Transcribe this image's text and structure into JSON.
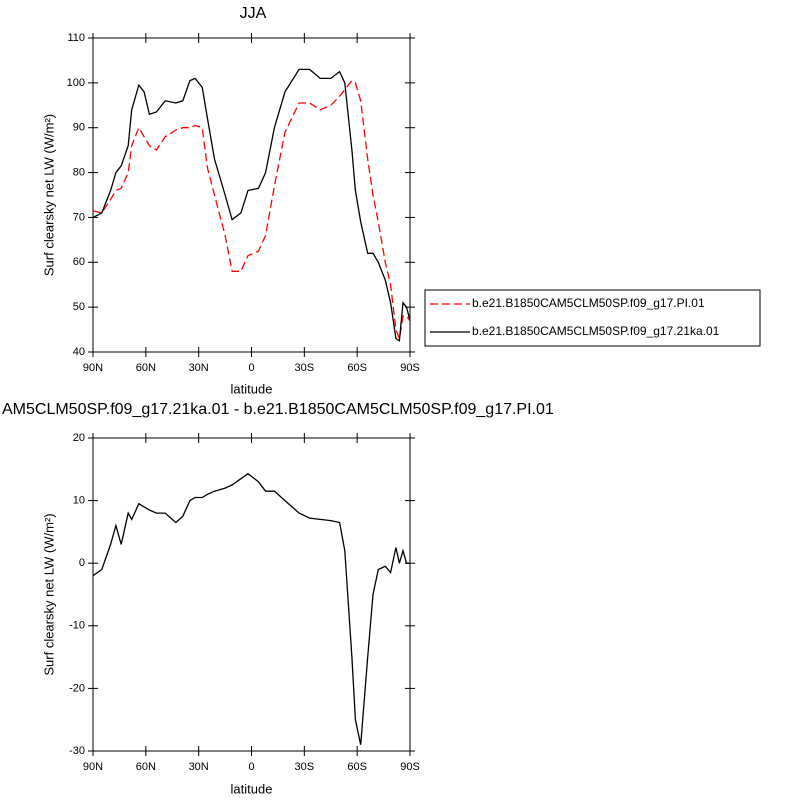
{
  "chart_data": [
    {
      "type": "line",
      "title": "JJA",
      "xlabel": "latitude",
      "ylabel": "Surf clearsky net LW (W/m²)",
      "x": [
        90,
        85,
        80,
        77,
        74,
        70,
        68,
        64,
        61,
        58,
        54,
        49,
        43,
        39,
        35,
        32,
        28,
        25,
        21,
        15,
        11,
        6,
        2,
        -4,
        -8,
        -13,
        -19,
        -27,
        -33,
        -39,
        -45,
        -50,
        -53,
        -57,
        -59,
        -62,
        -66,
        -69,
        -72,
        -76,
        -79,
        -82,
        -84,
        -86,
        -88,
        -90
      ],
      "series": [
        {
          "name": "b.e21.B1850CAM5CLM50SP.f09_g17.PI.01",
          "color": "#ff0000",
          "dash": "dashed",
          "values": [
            71.5,
            71,
            74,
            76,
            76.5,
            80,
            86,
            90,
            88,
            86,
            85,
            88,
            89.5,
            90,
            90,
            90.5,
            90,
            81,
            75,
            66,
            58,
            58,
            61.5,
            62.5,
            66,
            77,
            89,
            95.5,
            95.5,
            94,
            95,
            97,
            98.5,
            100.5,
            100,
            96,
            83,
            75,
            69,
            60,
            55,
            45,
            43,
            48,
            48,
            47
          ]
        },
        {
          "name": "b.e21.B1850CAM5CLM50SP.f09_g17.21ka.01",
          "color": "#000000",
          "dash": "solid",
          "values": [
            70,
            71,
            76,
            80,
            81.5,
            86,
            94,
            99.5,
            98,
            93,
            93.5,
            96,
            95.5,
            96,
            100.5,
            101,
            99,
            92,
            83,
            75,
            69.5,
            71,
            76,
            76.5,
            80,
            90,
            98,
            103,
            103,
            101,
            101,
            102.5,
            100,
            85,
            76,
            69,
            62,
            62,
            60,
            56,
            51,
            43,
            42.5,
            51,
            50,
            47
          ]
        }
      ],
      "xlim": [
        90,
        -90
      ],
      "xticks": [
        {
          "value": 90,
          "label": "90N"
        },
        {
          "value": 60,
          "label": "60N"
        },
        {
          "value": 30,
          "label": "30N"
        },
        0,
        {
          "value": -30,
          "label": "30S"
        },
        {
          "value": -60,
          "label": "60S"
        },
        {
          "value": -90,
          "label": "90S"
        }
      ],
      "ylim": [
        40,
        110
      ],
      "yticks": [
        40,
        50,
        60,
        70,
        80,
        90,
        100,
        110
      ],
      "legend": "right"
    },
    {
      "type": "line",
      "title": "AM5CLM50SP.f09_g17.21ka.01 - b.e21.B1850CAM5CLM50SP.f09_g17.PI.01",
      "xlabel": "latitude",
      "ylabel": "Surf clearsky net LW (W/m²)",
      "x": [
        90,
        85,
        80,
        77,
        74,
        70,
        68,
        64,
        61,
        58,
        54,
        49,
        43,
        39,
        35,
        32,
        28,
        25,
        21,
        15,
        11,
        6,
        2,
        -4,
        -8,
        -13,
        -19,
        -27,
        -33,
        -39,
        -45,
        -50,
        -53,
        -57,
        -59,
        -62,
        -66,
        -69,
        -72,
        -76,
        -79,
        -82,
        -84,
        -86,
        -88,
        -90
      ],
      "series": [
        {
          "color": "#000000",
          "dash": "solid",
          "values": [
            -2,
            -1,
            3,
            6,
            3,
            8,
            7,
            9.5,
            9,
            8.5,
            8,
            8,
            6.5,
            7.5,
            10,
            10.5,
            10.5,
            11,
            11.5,
            12,
            12.5,
            13.5,
            14.3,
            13,
            11.5,
            11.5,
            10,
            8,
            7.2,
            7,
            6.8,
            6.5,
            2,
            -15,
            -25,
            -29,
            -15,
            -5,
            -1,
            -0.5,
            -1.5,
            2.5,
            0,
            2,
            0,
            0
          ]
        }
      ],
      "xlim": [
        90,
        -90
      ],
      "xticks": [
        {
          "value": 90,
          "label": "90N"
        },
        {
          "value": 60,
          "label": "60N"
        },
        {
          "value": 30,
          "label": "30N"
        },
        0,
        {
          "value": -30,
          "label": "30S"
        },
        {
          "value": -60,
          "label": "60S"
        },
        {
          "value": -90,
          "label": "90S"
        }
      ],
      "ylim": [
        -30,
        20
      ],
      "yticks": [
        -30,
        -20,
        -10,
        0,
        10,
        20
      ]
    }
  ]
}
